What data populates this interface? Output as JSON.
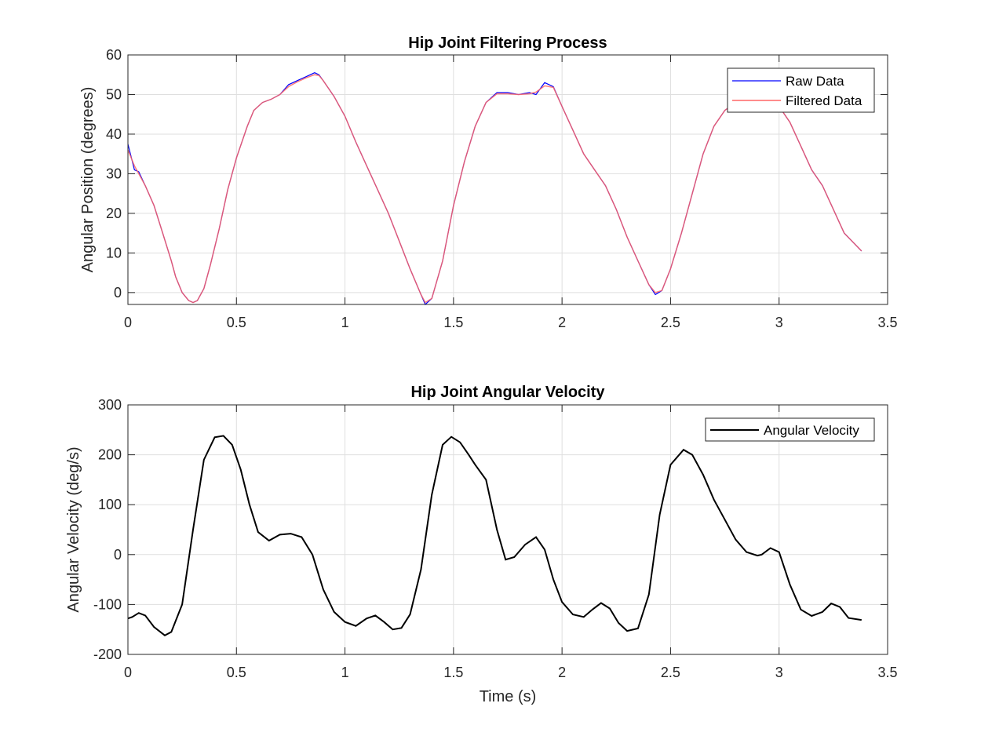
{
  "chart_data": [
    {
      "type": "line",
      "title": "Hip Joint Filtering Process",
      "xlabel": "",
      "ylabel": "Angular Position (degrees)",
      "xlim": [
        0,
        3.5
      ],
      "ylim": [
        -3,
        60
      ],
      "xticks": [
        0,
        0.5,
        1,
        1.5,
        2,
        2.5,
        3,
        3.5
      ],
      "yticks": [
        0,
        10,
        20,
        30,
        40,
        50,
        60
      ],
      "grid": true,
      "legend_position": "top-right",
      "colors": {
        "raw": "#0000ff",
        "filtered": "#ff6666"
      },
      "series": [
        {
          "name": "Raw Data",
          "x": [
            0,
            0.03,
            0.05,
            0.08,
            0.12,
            0.16,
            0.2,
            0.22,
            0.25,
            0.28,
            0.3,
            0.32,
            0.35,
            0.38,
            0.42,
            0.46,
            0.5,
            0.55,
            0.58,
            0.62,
            0.66,
            0.7,
            0.74,
            0.78,
            0.82,
            0.86,
            0.88,
            0.9,
            0.95,
            1.0,
            1.05,
            1.1,
            1.15,
            1.2,
            1.25,
            1.3,
            1.35,
            1.37,
            1.4,
            1.45,
            1.5,
            1.55,
            1.6,
            1.65,
            1.7,
            1.75,
            1.8,
            1.85,
            1.88,
            1.92,
            1.96,
            2.0,
            2.05,
            2.1,
            2.15,
            2.2,
            2.25,
            2.3,
            2.35,
            2.4,
            2.43,
            2.46,
            2.5,
            2.55,
            2.6,
            2.65,
            2.7,
            2.75,
            2.8,
            2.85,
            2.9,
            2.95,
            3.0,
            3.05,
            3.1,
            3.15,
            3.2,
            3.25,
            3.3,
            3.38
          ],
          "values": [
            37.5,
            31,
            30.5,
            27,
            22,
            15,
            8,
            4,
            0,
            -2,
            -2.5,
            -2,
            1,
            7,
            16,
            26,
            34,
            42,
            46,
            48,
            48.8,
            50,
            52.5,
            53.5,
            54.5,
            55.5,
            55,
            53.5,
            49.5,
            44.5,
            38,
            32,
            26,
            20,
            13,
            6,
            -0.5,
            -3,
            -1.5,
            8,
            22,
            33,
            42,
            48,
            50.5,
            50.5,
            50,
            50.5,
            50,
            53,
            52,
            47,
            41,
            35,
            31,
            27,
            21,
            14,
            8,
            2,
            -0.5,
            0.5,
            6,
            15,
            25,
            35,
            42,
            46,
            48,
            48.5,
            48,
            48,
            47,
            43,
            37,
            31,
            27,
            21,
            15,
            10.5
          ]
        },
        {
          "name": "Filtered Data",
          "x": [
            0,
            0.03,
            0.05,
            0.08,
            0.12,
            0.16,
            0.2,
            0.22,
            0.25,
            0.28,
            0.3,
            0.32,
            0.35,
            0.38,
            0.42,
            0.46,
            0.5,
            0.55,
            0.58,
            0.62,
            0.66,
            0.7,
            0.74,
            0.78,
            0.82,
            0.86,
            0.88,
            0.9,
            0.95,
            1.0,
            1.05,
            1.1,
            1.15,
            1.2,
            1.25,
            1.3,
            1.35,
            1.37,
            1.4,
            1.45,
            1.5,
            1.55,
            1.6,
            1.65,
            1.7,
            1.75,
            1.8,
            1.85,
            1.88,
            1.92,
            1.96,
            2.0,
            2.05,
            2.1,
            2.15,
            2.2,
            2.25,
            2.3,
            2.35,
            2.4,
            2.43,
            2.46,
            2.5,
            2.55,
            2.6,
            2.65,
            2.7,
            2.75,
            2.8,
            2.85,
            2.9,
            2.95,
            3.0,
            3.05,
            3.1,
            3.15,
            3.2,
            3.25,
            3.3,
            3.38
          ],
          "values": [
            36,
            32,
            30,
            27,
            22,
            15,
            8,
            4,
            0,
            -2,
            -2.5,
            -2,
            1,
            7,
            16,
            26,
            34,
            42,
            46,
            48,
            48.8,
            50,
            52,
            53.2,
            54.2,
            55,
            54.8,
            53.5,
            49.5,
            44.5,
            38,
            32,
            26,
            20,
            13,
            6,
            -0.5,
            -2.5,
            -1.5,
            8,
            22,
            33,
            42,
            48,
            50.2,
            50.2,
            50,
            50.2,
            50.6,
            52.2,
            51.8,
            47,
            41,
            35,
            31,
            27,
            21,
            14,
            8,
            2,
            0,
            0.5,
            6,
            15,
            25,
            35,
            42,
            46,
            48,
            48.5,
            48,
            48,
            47,
            43,
            37,
            31,
            27,
            21,
            15,
            10.5
          ]
        }
      ]
    },
    {
      "type": "line",
      "title": "Hip Joint Angular Velocity",
      "xlabel": "Time (s)",
      "ylabel": "Angular Velocity (deg/s)",
      "xlim": [
        0,
        3.5
      ],
      "ylim": [
        -200,
        300
      ],
      "xticks": [
        0,
        0.5,
        1,
        1.5,
        2,
        2.5,
        3,
        3.5
      ],
      "yticks": [
        -200,
        -100,
        0,
        100,
        200,
        300
      ],
      "grid": true,
      "legend_position": "top-right",
      "colors": {
        "velocity": "#000000"
      },
      "series": [
        {
          "name": "Angular Velocity",
          "x": [
            0,
            0.02,
            0.05,
            0.08,
            0.12,
            0.17,
            0.2,
            0.25,
            0.3,
            0.35,
            0.4,
            0.44,
            0.48,
            0.52,
            0.56,
            0.6,
            0.65,
            0.7,
            0.75,
            0.8,
            0.85,
            0.9,
            0.95,
            1.0,
            1.05,
            1.1,
            1.14,
            1.18,
            1.22,
            1.26,
            1.3,
            1.35,
            1.4,
            1.45,
            1.49,
            1.53,
            1.57,
            1.6,
            1.65,
            1.7,
            1.74,
            1.78,
            1.83,
            1.88,
            1.92,
            1.96,
            2.0,
            2.05,
            2.1,
            2.14,
            2.18,
            2.22,
            2.26,
            2.3,
            2.35,
            2.4,
            2.45,
            2.5,
            2.56,
            2.6,
            2.65,
            2.7,
            2.75,
            2.8,
            2.85,
            2.9,
            2.92,
            2.96,
            3.0,
            3.05,
            3.1,
            3.15,
            3.2,
            3.24,
            3.28,
            3.32,
            3.38
          ],
          "values": [
            -128,
            -125,
            -117,
            -122,
            -145,
            -162,
            -155,
            -100,
            50,
            190,
            235,
            238,
            220,
            170,
            100,
            45,
            28,
            40,
            42,
            35,
            0,
            -70,
            -115,
            -135,
            -143,
            -128,
            -122,
            -135,
            -150,
            -147,
            -120,
            -30,
            120,
            220,
            236,
            225,
            200,
            180,
            150,
            50,
            -10,
            -5,
            20,
            35,
            10,
            -50,
            -95,
            -120,
            -125,
            -110,
            -97,
            -108,
            -137,
            -153,
            -148,
            -80,
            80,
            180,
            210,
            200,
            160,
            110,
            70,
            30,
            5,
            -2,
            0,
            13,
            5,
            -60,
            -110,
            -123,
            -115,
            -98,
            -105,
            -127,
            -131
          ]
        }
      ]
    }
  ]
}
